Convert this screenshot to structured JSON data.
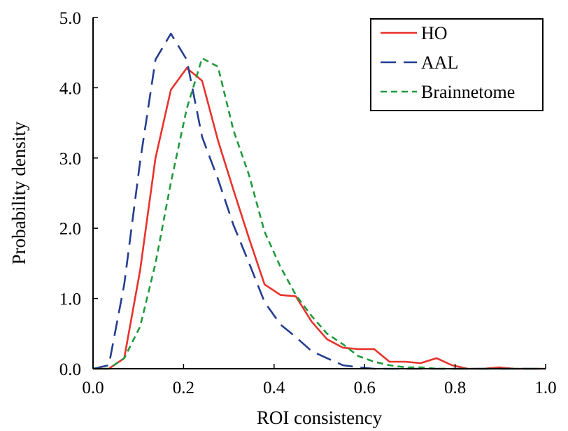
{
  "chart_data": {
    "type": "line",
    "title": "",
    "xlabel": "ROI consistency",
    "ylabel": "Probability density",
    "xlim": [
      0,
      1
    ],
    "ylim": [
      0,
      5
    ],
    "grid": false,
    "legend_position": "top-right",
    "x_ticks": [
      "0.0",
      "0.2",
      "0.4",
      "0.6",
      "0.8",
      "1.0"
    ],
    "y_ticks": [
      "0.0",
      "1.0",
      "2.0",
      "3.0",
      "4.0",
      "5.0"
    ],
    "series": [
      {
        "name": "HO",
        "color": "#e8322d",
        "dash": "solid",
        "x": [
          0.0,
          0.035,
          0.069,
          0.104,
          0.138,
          0.172,
          0.207,
          0.241,
          0.276,
          0.31,
          0.345,
          0.379,
          0.414,
          0.448,
          0.483,
          0.517,
          0.552,
          0.586,
          0.621,
          0.655,
          0.69,
          0.724,
          0.759,
          0.793,
          0.828,
          0.862,
          0.897,
          0.931,
          0.966,
          1.0
        ],
        "values": [
          0.0,
          0.0,
          0.15,
          1.4,
          3.0,
          3.97,
          4.28,
          4.1,
          3.25,
          2.55,
          1.85,
          1.2,
          1.05,
          1.03,
          0.67,
          0.42,
          0.3,
          0.28,
          0.28,
          0.1,
          0.1,
          0.08,
          0.15,
          0.05,
          0.0,
          0.0,
          0.02,
          0.0,
          0.0,
          0.0
        ]
      },
      {
        "name": "AAL",
        "color": "#243d8f",
        "dash": "long-dash",
        "x": [
          0.0,
          0.035,
          0.069,
          0.104,
          0.138,
          0.172,
          0.207,
          0.241,
          0.276,
          0.31,
          0.345,
          0.379,
          0.414,
          0.448,
          0.483,
          0.517,
          0.552,
          0.586,
          0.621,
          0.655,
          0.69,
          0.724,
          0.759,
          0.793,
          0.828,
          0.862,
          0.897,
          0.931,
          0.966,
          1.0
        ],
        "values": [
          0.0,
          0.05,
          1.2,
          2.95,
          4.4,
          4.77,
          4.4,
          3.3,
          2.7,
          2.05,
          1.5,
          0.95,
          0.63,
          0.45,
          0.25,
          0.15,
          0.05,
          0.02,
          0.0,
          0.0,
          0.0,
          0.0,
          0.0,
          0.0,
          0.0,
          0.0,
          0.0,
          0.0,
          0.0,
          0.0
        ]
      },
      {
        "name": "Brainnetome",
        "color": "#1f9a3c",
        "dash": "short-dash",
        "x": [
          0.0,
          0.035,
          0.069,
          0.104,
          0.138,
          0.172,
          0.207,
          0.241,
          0.276,
          0.31,
          0.345,
          0.379,
          0.414,
          0.448,
          0.483,
          0.517,
          0.552,
          0.586,
          0.621,
          0.655,
          0.69,
          0.724,
          0.759,
          0.793,
          0.828,
          0.862,
          0.897,
          0.931,
          0.966,
          1.0
        ],
        "values": [
          0.0,
          0.0,
          0.15,
          0.6,
          1.5,
          2.65,
          3.7,
          4.42,
          4.3,
          3.4,
          2.75,
          1.95,
          1.45,
          1.05,
          0.75,
          0.5,
          0.35,
          0.18,
          0.1,
          0.05,
          0.02,
          0.02,
          0.0,
          0.0,
          0.0,
          0.0,
          0.0,
          0.0,
          0.0,
          0.0
        ]
      }
    ]
  }
}
